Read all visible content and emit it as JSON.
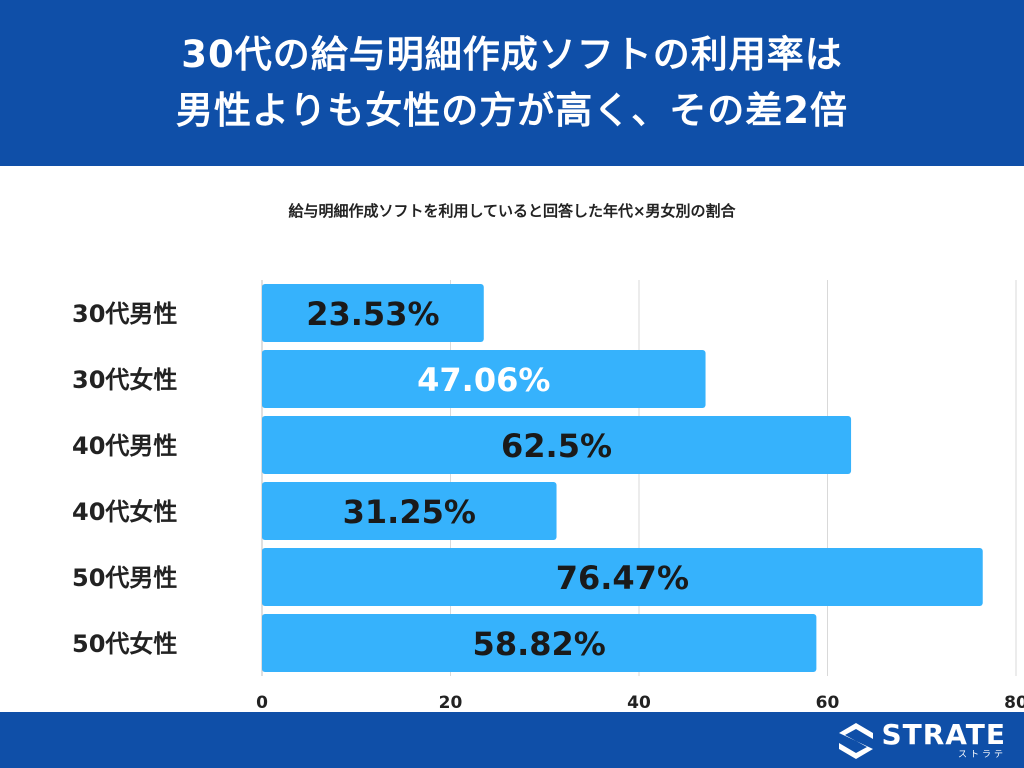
{
  "header": {
    "title_line1": "30代の給与明細作成ソフトの利用率は",
    "title_line2": "男性よりも女性の方が高く、その差2倍"
  },
  "colors": {
    "header_bg": "#0f4fa8",
    "bar": "#36b2fc",
    "grid": "#d9d9d9"
  },
  "chart_data": {
    "type": "bar",
    "orientation": "horizontal",
    "title": "給与明細作成ソフトを利用していると回答した年代×男女別の割合",
    "categories": [
      "30代男性",
      "30代女性",
      "40代男性",
      "40代女性",
      "50代男性",
      "50代女性"
    ],
    "values": [
      23.53,
      47.06,
      62.5,
      31.25,
      76.47,
      58.82
    ],
    "data_labels": [
      "23.53%",
      "47.06%",
      "62.5%",
      "31.25%",
      "76.47%",
      "58.82%"
    ],
    "xlim": [
      0,
      80
    ],
    "xticks": [
      "0",
      "20",
      "40",
      "60",
      "80"
    ],
    "grid": true
  },
  "logo": {
    "name": "STRATE",
    "sub": "ストラテ",
    "icon": "strate-s-logo-icon"
  }
}
